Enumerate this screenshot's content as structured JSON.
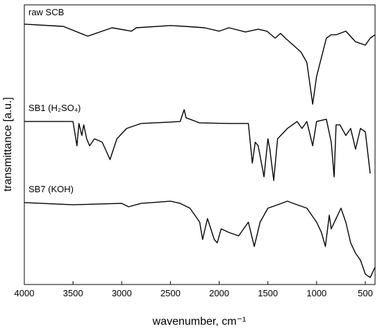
{
  "chart_data": {
    "type": "line",
    "xlabel": "wavenumber, cm⁻¹",
    "ylabel": "transmittance [a.u.]",
    "xlim": [
      4000,
      400
    ],
    "ylim": [
      0,
      100
    ],
    "xticks": [
      4000,
      3500,
      3000,
      2500,
      2000,
      1500,
      1000,
      500
    ],
    "series": [
      {
        "name": "raw SCB",
        "color": "#000000",
        "x": [
          4000,
          3600,
          3400,
          3350,
          3100,
          2900,
          2850,
          2500,
          2350,
          2150,
          2000,
          1900,
          1730,
          1600,
          1510,
          1425,
          1370,
          1320,
          1240,
          1160,
          1100,
          1040,
          1000,
          900,
          850,
          800,
          700,
          600,
          500,
          450,
          400
        ],
        "values": [
          93.1,
          92.3,
          89.5,
          88.8,
          91.8,
          90.6,
          91.8,
          92.6,
          92.3,
          91.8,
          90.6,
          91.8,
          90.3,
          91.3,
          90.6,
          88.1,
          89.8,
          88.1,
          85.6,
          83.1,
          79.4,
          64.5,
          74.4,
          88.1,
          89.3,
          89.3,
          90.6,
          86.8,
          85.6,
          88.1,
          89.3
        ]
      },
      {
        "name": "SB1 (H₂SO₄)",
        "color": "#000000",
        "x": [
          4000,
          3500,
          3460,
          3440,
          3410,
          3390,
          3360,
          3330,
          3280,
          3200,
          3120,
          3050,
          2950,
          2800,
          2500,
          2400,
          2360,
          2340,
          2300,
          2200,
          1900,
          1700,
          1660,
          1630,
          1600,
          1540,
          1500,
          1480,
          1440,
          1400,
          1300,
          1200,
          1150,
          1100,
          1040,
          1000,
          900,
          850,
          820,
          800,
          760,
          700,
          650,
          600,
          550,
          500,
          450
        ],
        "values": [
          58.3,
          58.3,
          49.6,
          57.6,
          53.3,
          57.1,
          52.1,
          49.6,
          52.1,
          50.9,
          44.7,
          52.1,
          55.8,
          57.6,
          58.1,
          58.3,
          62.5,
          59.6,
          59.1,
          57.8,
          57.6,
          57.6,
          43.4,
          50.9,
          49.6,
          38.5,
          52.1,
          48.4,
          37.2,
          52.1,
          55.8,
          58.3,
          55.8,
          58.3,
          49.6,
          58.3,
          59.1,
          50.9,
          38.5,
          57.1,
          57.1,
          53.3,
          55.8,
          48.4,
          55.8,
          54.6,
          39.7
        ]
      },
      {
        "name": "SB7 (KOH)",
        "color": "#000000",
        "x": [
          4000,
          3500,
          3000,
          2930,
          2800,
          2500,
          2400,
          2300,
          2200,
          2170,
          2120,
          2050,
          2020,
          1980,
          1900,
          1800,
          1700,
          1640,
          1580,
          1500,
          1400,
          1300,
          1200,
          1100,
          1000,
          950,
          910,
          870,
          850,
          800,
          750,
          700,
          650,
          600,
          550,
          500,
          450,
          400
        ],
        "values": [
          29.3,
          28.5,
          29.0,
          27.8,
          29.0,
          29.8,
          29.0,
          27.3,
          22.3,
          16.1,
          23.6,
          16.1,
          14.9,
          19.9,
          18.6,
          17.4,
          22.3,
          13.6,
          22.3,
          27.3,
          28.5,
          29.8,
          28.5,
          27.3,
          22.3,
          18.6,
          13.6,
          24.8,
          19.9,
          23.6,
          27.3,
          22.3,
          14.9,
          11.2,
          8.7,
          3.7,
          2.5,
          6.2
        ]
      }
    ]
  }
}
